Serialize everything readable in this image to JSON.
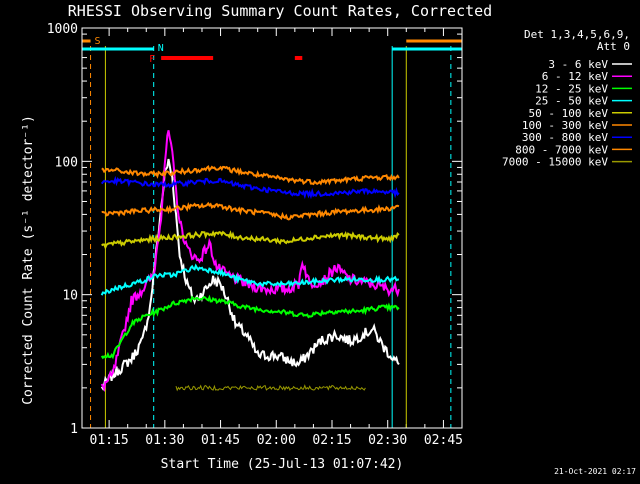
{
  "chart_data": {
    "type": "line",
    "title": "RHESSI Observing Summary Count Rates, Corrected",
    "xlabel": "Start Time (25-Jul-13 01:07:42)",
    "ylabel": "Corrected Count Rate (s⁻¹ detector⁻¹)",
    "ylog": true,
    "ylim": [
      1,
      1000
    ],
    "xlim_minutes": [
      7.7,
      110.0
    ],
    "xticks": [
      {
        "m": 15,
        "label": "01:15"
      },
      {
        "m": 30,
        "label": "01:30"
      },
      {
        "m": 45,
        "label": "01:45"
      },
      {
        "m": 60,
        "label": "02:00"
      },
      {
        "m": 75,
        "label": "02:15"
      },
      {
        "m": 90,
        "label": "02:30"
      },
      {
        "m": 105,
        "label": "02:45"
      }
    ],
    "yticks": [
      {
        "v": 1,
        "label": "1"
      },
      {
        "v": 10,
        "label": "10"
      },
      {
        "v": 100,
        "label": "100"
      },
      {
        "v": 1000,
        "label": "1000"
      }
    ],
    "legend_header": [
      "Det 1,3,4,5,6,9,",
      "Att 0"
    ],
    "legend_position": "right",
    "footer_date": "21-Oct-2021 02:17",
    "series": [
      {
        "name": "3 - 6 keV",
        "color": "#ffffff",
        "points": [
          [
            13,
            2
          ],
          [
            16,
            2.5
          ],
          [
            21,
            3.3
          ],
          [
            24,
            4.5
          ],
          [
            26,
            8
          ],
          [
            28,
            25
          ],
          [
            30,
            80
          ],
          [
            31,
            100
          ],
          [
            32,
            75
          ],
          [
            33,
            40
          ],
          [
            34,
            20
          ],
          [
            36,
            12
          ],
          [
            38,
            9
          ],
          [
            41,
            11
          ],
          [
            43,
            13
          ],
          [
            45,
            12
          ],
          [
            47,
            9
          ],
          [
            49,
            6
          ],
          [
            52,
            5
          ],
          [
            55,
            3.5
          ],
          [
            60,
            3.5
          ],
          [
            66,
            3
          ],
          [
            72,
            4.5
          ],
          [
            76,
            5
          ],
          [
            80,
            4.5
          ],
          [
            86,
            5.5
          ],
          [
            89,
            4
          ],
          [
            93,
            3
          ]
        ]
      },
      {
        "name": "6 - 12 keV",
        "color": "#ff00ff",
        "points": [
          [
            13,
            2
          ],
          [
            16,
            2.5
          ],
          [
            21,
            9
          ],
          [
            24,
            11
          ],
          [
            27,
            14
          ],
          [
            29,
            40
          ],
          [
            30,
            100
          ],
          [
            31,
            170
          ],
          [
            32,
            110
          ],
          [
            33,
            60
          ],
          [
            34,
            35
          ],
          [
            36,
            22
          ],
          [
            39,
            18
          ],
          [
            42,
            24
          ],
          [
            44,
            16
          ],
          [
            47,
            14
          ],
          [
            52,
            12
          ],
          [
            57,
            11
          ],
          [
            63,
            11
          ],
          [
            66,
            12
          ],
          [
            67,
            18
          ],
          [
            69,
            12
          ],
          [
            73,
            13
          ],
          [
            76,
            16
          ],
          [
            80,
            13
          ],
          [
            86,
            12
          ],
          [
            90,
            11
          ],
          [
            93,
            11
          ]
        ]
      },
      {
        "name": "12 - 25 keV",
        "color": "#00ff00",
        "points": [
          [
            13,
            3.5
          ],
          [
            16,
            3.5
          ],
          [
            21,
            6
          ],
          [
            25,
            7
          ],
          [
            28,
            7.5
          ],
          [
            32,
            8.5
          ],
          [
            38,
            9.5
          ],
          [
            45,
            9
          ],
          [
            52,
            8
          ],
          [
            60,
            7.5
          ],
          [
            68,
            7
          ],
          [
            75,
            7.5
          ],
          [
            82,
            7.5
          ],
          [
            88,
            8
          ],
          [
            93,
            8
          ]
        ]
      },
      {
        "name": "25 - 50 keV",
        "color": "#00ffff",
        "points": [
          [
            13,
            10
          ],
          [
            16,
            11
          ],
          [
            21,
            12
          ],
          [
            25,
            13
          ],
          [
            28,
            14
          ],
          [
            32,
            14
          ],
          [
            38,
            16
          ],
          [
            44,
            15
          ],
          [
            50,
            13
          ],
          [
            56,
            12
          ],
          [
            63,
            12
          ],
          [
            70,
            12.5
          ],
          [
            77,
            13
          ],
          [
            84,
            13
          ],
          [
            93,
            13
          ]
        ]
      },
      {
        "name": "50 - 100 keV",
        "color": "#cccc00",
        "points": [
          [
            13,
            23
          ],
          [
            16,
            24
          ],
          [
            21,
            25
          ],
          [
            26,
            26
          ],
          [
            32,
            27
          ],
          [
            38,
            28
          ],
          [
            44,
            29
          ],
          [
            50,
            27
          ],
          [
            56,
            26
          ],
          [
            63,
            25
          ],
          [
            70,
            27
          ],
          [
            77,
            28
          ],
          [
            84,
            27
          ],
          [
            90,
            26
          ],
          [
            93,
            28
          ]
        ]
      },
      {
        "name": "100 - 300 keV",
        "color": "#ff8800",
        "points": [
          [
            13,
            40
          ],
          [
            16,
            41
          ],
          [
            21,
            42
          ],
          [
            26,
            43
          ],
          [
            32,
            44
          ],
          [
            38,
            46
          ],
          [
            44,
            47
          ],
          [
            50,
            43
          ],
          [
            56,
            41
          ],
          [
            63,
            38
          ],
          [
            70,
            40
          ],
          [
            77,
            42
          ],
          [
            84,
            43
          ],
          [
            90,
            44
          ],
          [
            93,
            46
          ]
        ]
      },
      {
        "name": "300 - 800 keV",
        "color": "#0000ff",
        "points": [
          [
            13,
            70
          ],
          [
            16,
            71
          ],
          [
            21,
            70
          ],
          [
            26,
            67
          ],
          [
            32,
            67
          ],
          [
            38,
            70
          ],
          [
            44,
            72
          ],
          [
            50,
            66
          ],
          [
            56,
            62
          ],
          [
            63,
            58
          ],
          [
            70,
            57
          ],
          [
            77,
            58
          ],
          [
            84,
            60
          ],
          [
            90,
            59
          ],
          [
            93,
            58
          ]
        ]
      },
      {
        "name": "800 - 7000 keV",
        "color": "#ff8800",
        "points": [
          [
            13,
            85
          ],
          [
            16,
            86
          ],
          [
            21,
            82
          ],
          [
            26,
            80
          ],
          [
            32,
            82
          ],
          [
            38,
            86
          ],
          [
            44,
            90
          ],
          [
            50,
            84
          ],
          [
            56,
            78
          ],
          [
            63,
            73
          ],
          [
            70,
            70
          ],
          [
            77,
            72
          ],
          [
            84,
            75
          ],
          [
            90,
            76
          ],
          [
            93,
            75
          ]
        ]
      },
      {
        "name": "7000 - 15000 keV",
        "color": "#999900",
        "points": [
          [
            33,
            2
          ],
          [
            37,
            2
          ],
          [
            41,
            2
          ],
          [
            45,
            2
          ],
          [
            78,
            2
          ],
          [
            84,
            2
          ]
        ]
      }
    ],
    "top_markers": [
      {
        "label": "S",
        "color": "#ff8800"
      },
      {
        "label": "N",
        "color": "#00ffff"
      },
      {
        "label": "F",
        "color": "#ff0000"
      }
    ]
  }
}
